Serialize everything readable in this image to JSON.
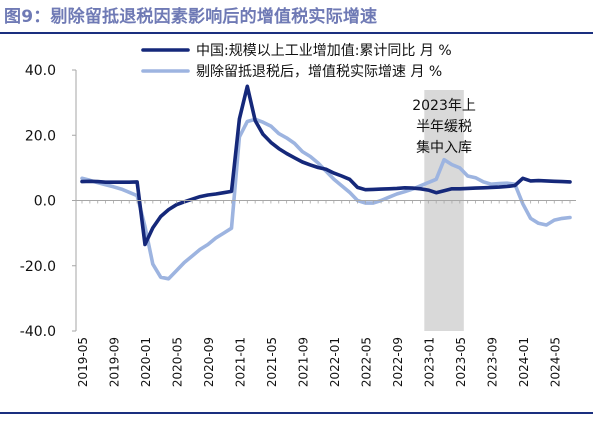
{
  "figure": {
    "title": "图9：剔除留抵退税因素影响后的增值税实际增速"
  },
  "chart_data": {
    "type": "line",
    "title": "图9：剔除留抵退税因素影响后的增值税实际增速",
    "xlabel": "",
    "ylabel": "",
    "ylim": [
      -40,
      40
    ],
    "yticks": [
      "40.0",
      "20.0",
      "0.0",
      "-20.0",
      "-40.0"
    ],
    "x": [
      "2019-05",
      "2019-06",
      "2019-07",
      "2019-08",
      "2019-09",
      "2019-10",
      "2019-11",
      "2019-12",
      "2020-01",
      "2020-02",
      "2020-03",
      "2020-04",
      "2020-05",
      "2020-06",
      "2020-07",
      "2020-08",
      "2020-09",
      "2020-10",
      "2020-11",
      "2020-12",
      "2021-01",
      "2021-02",
      "2021-03",
      "2021-04",
      "2021-05",
      "2021-06",
      "2021-07",
      "2021-08",
      "2021-09",
      "2021-10",
      "2021-11",
      "2021-12",
      "2022-01",
      "2022-02",
      "2022-03",
      "2022-04",
      "2022-05",
      "2022-06",
      "2022-07",
      "2022-08",
      "2022-09",
      "2022-10",
      "2022-11",
      "2022-12",
      "2023-01",
      "2023-02",
      "2023-03",
      "2023-04",
      "2023-05",
      "2023-06",
      "2023-07",
      "2023-08",
      "2023-09",
      "2023-10",
      "2023-11",
      "2023-12",
      "2024-01",
      "2024-02",
      "2024-03",
      "2024-04",
      "2024-05",
      "2024-06",
      "2024-07"
    ],
    "xticks": [
      "2019-05",
      "2019-09",
      "2020-01",
      "2020-05",
      "2020-09",
      "2021-01",
      "2021-05",
      "2021-09",
      "2022-01",
      "2022-05",
      "2022-09",
      "2023-01",
      "2023-05",
      "2023-09",
      "2024-01",
      "2024-05"
    ],
    "series": [
      {
        "name": "中国:规模以上工业增加值:累计同比 月 %",
        "color": "#15287a",
        "values": [
          5.8,
          5.9,
          5.8,
          5.6,
          5.6,
          5.6,
          5.6,
          5.7,
          -13.5,
          -8.4,
          -4.9,
          -2.8,
          -1.3,
          -0.4,
          0.4,
          1.2,
          1.7,
          2.0,
          2.4,
          2.8,
          25.0,
          35.0,
          24.5,
          20.3,
          17.8,
          15.9,
          14.4,
          13.1,
          11.8,
          10.9,
          10.1,
          9.6,
          8.4,
          7.5,
          6.5,
          4.0,
          3.3,
          3.4,
          3.5,
          3.6,
          3.7,
          3.9,
          3.8,
          3.6,
          3.2,
          2.4,
          3.0,
          3.6,
          3.6,
          3.7,
          3.8,
          3.9,
          4.0,
          4.1,
          4.3,
          4.6,
          6.8,
          6.0,
          6.1,
          6.0,
          5.9,
          5.8,
          5.7
        ]
      },
      {
        "name": "剔除留抵退税后，增值税实际增速 月 %",
        "color": "#9db4e0",
        "values": [
          6.8,
          6.2,
          5.5,
          4.8,
          4.2,
          3.5,
          2.5,
          1.5,
          -8.0,
          -19.5,
          -23.5,
          -24.0,
          -21.5,
          -19.0,
          -17.0,
          -15.0,
          -13.5,
          -11.5,
          -10.0,
          -8.5,
          19.5,
          24.2,
          24.9,
          24.0,
          22.8,
          20.5,
          19.2,
          17.5,
          15.0,
          13.5,
          11.5,
          9.0,
          6.5,
          4.5,
          2.5,
          0.0,
          -0.8,
          -0.8,
          0.0,
          1.0,
          2.0,
          2.7,
          3.5,
          4.5,
          5.5,
          6.5,
          12.5,
          11.0,
          10.0,
          7.5,
          7.0,
          5.7,
          5.0,
          5.2,
          5.3,
          5.0,
          -1.0,
          -5.5,
          -7.0,
          -7.5,
          -6.0,
          -5.5,
          -5.2
        ]
      }
    ],
    "annotations": [
      {
        "text_lines": [
          "2023年上",
          "半年缓税",
          "集中入库"
        ],
        "shade_from": "2023-01",
        "shade_to": "2023-05",
        "shade_color": "#d9d9d9"
      }
    ],
    "legend": "top-center",
    "grid": false
  }
}
